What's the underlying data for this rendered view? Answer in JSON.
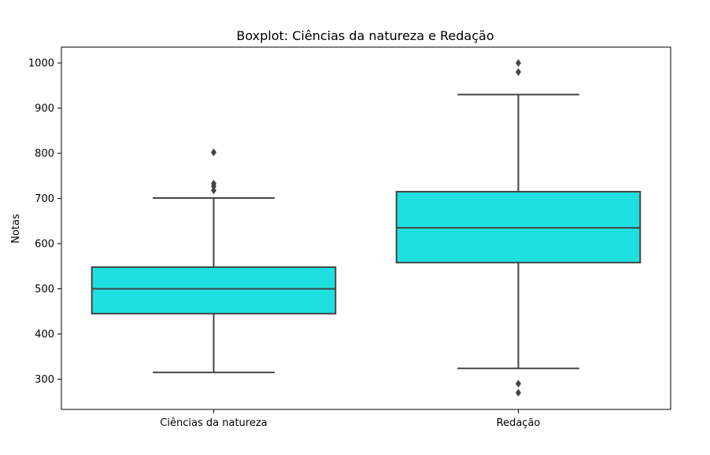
{
  "chart_data": {
    "type": "boxplot",
    "title": "Boxplot: Ciências da natureza e Redação",
    "xlabel": "",
    "ylabel": "Notas",
    "ylim": [
      233,
      1035
    ],
    "yticks": [
      300,
      400,
      500,
      600,
      700,
      800,
      900,
      1000
    ],
    "grid": false,
    "categories": [
      "Ciências da natureza",
      "Redação"
    ],
    "boxes": [
      {
        "category": "Ciências da natureza",
        "whisker_low": 315,
        "q1": 445,
        "median": 500,
        "q3": 548,
        "whisker_high": 701,
        "outliers": [
          718,
          727,
          733,
          802
        ]
      },
      {
        "category": "Redação",
        "whisker_low": 324,
        "q1": 558,
        "median": 635,
        "q3": 715,
        "whisker_high": 930,
        "outliers": [
          270,
          290,
          980,
          1000
        ]
      }
    ],
    "colors": {
      "box_fill": "#1fe0e0",
      "line": "#444444",
      "axis": "#000000"
    }
  }
}
